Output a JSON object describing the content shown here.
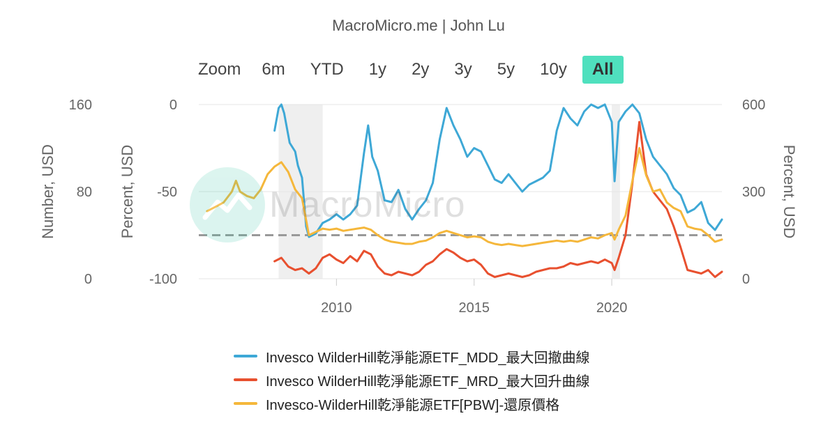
{
  "header": {
    "source": "MacroMicro.me | John Lu"
  },
  "zoom": {
    "label": "Zoom",
    "buttons": [
      {
        "label": "6m",
        "active": false
      },
      {
        "label": "YTD",
        "active": false
      },
      {
        "label": "1y",
        "active": false
      },
      {
        "label": "2y",
        "active": false
      },
      {
        "label": "3y",
        "active": false
      },
      {
        "label": "5y",
        "active": false
      },
      {
        "label": "10y",
        "active": false
      },
      {
        "label": "All",
        "active": true
      }
    ]
  },
  "watermark": {
    "text": "MacroMicro"
  },
  "colors": {
    "mdd": "#3ea8d6",
    "mrd": "#e8502f",
    "price": "#f5b73b",
    "grid": "#e6e6e6",
    "reference": "#999999",
    "recession": "#efefef"
  },
  "chart_data": {
    "type": "line",
    "x_range": [
      2005.0,
      2024.0
    ],
    "x_ticks": [
      "2010",
      "2015",
      "2020"
    ],
    "axes": {
      "left_outer": {
        "label": "Number, USD",
        "range": [
          0,
          160
        ],
        "ticks": [
          "160",
          "80",
          "0"
        ]
      },
      "left_inner": {
        "label": "Percent, USD",
        "range": [
          -100,
          0
        ],
        "ticks": [
          "0",
          "-50",
          "-100"
        ]
      },
      "right": {
        "label": "Percent, USD",
        "range": [
          0,
          600
        ],
        "ticks": [
          "600",
          "300",
          "0"
        ]
      }
    },
    "reference_line": {
      "axis": "left_inner",
      "value": -75
    },
    "recession_bands": [
      [
        2007.9,
        2009.5
      ],
      [
        2020.0,
        2020.3
      ]
    ],
    "grid": true,
    "legend_position": "bottom",
    "series": [
      {
        "name": "Invesco WilderHill乾淨能源ETF_MDD_最大回撤曲線",
        "axis": "left_inner",
        "color": "#3ea8d6",
        "points": [
          [
            2007.75,
            -15
          ],
          [
            2007.9,
            -2
          ],
          [
            2008.0,
            0
          ],
          [
            2008.1,
            -5
          ],
          [
            2008.3,
            -22
          ],
          [
            2008.5,
            -27
          ],
          [
            2008.6,
            -35
          ],
          [
            2008.75,
            -42
          ],
          [
            2008.9,
            -70
          ],
          [
            2009.0,
            -76
          ],
          [
            2009.25,
            -74
          ],
          [
            2009.5,
            -68
          ],
          [
            2009.75,
            -66
          ],
          [
            2010.0,
            -63
          ],
          [
            2010.25,
            -66
          ],
          [
            2010.5,
            -63
          ],
          [
            2010.75,
            -58
          ],
          [
            2011.0,
            -28
          ],
          [
            2011.15,
            -12
          ],
          [
            2011.3,
            -30
          ],
          [
            2011.5,
            -38
          ],
          [
            2011.75,
            -55
          ],
          [
            2012.0,
            -56
          ],
          [
            2012.25,
            -49
          ],
          [
            2012.5,
            -60
          ],
          [
            2012.75,
            -66
          ],
          [
            2013.0,
            -60
          ],
          [
            2013.25,
            -55
          ],
          [
            2013.5,
            -45
          ],
          [
            2013.75,
            -20
          ],
          [
            2014.0,
            -2
          ],
          [
            2014.25,
            -12
          ],
          [
            2014.5,
            -20
          ],
          [
            2014.75,
            -30
          ],
          [
            2015.0,
            -25
          ],
          [
            2015.25,
            -27
          ],
          [
            2015.5,
            -35
          ],
          [
            2015.75,
            -43
          ],
          [
            2016.0,
            -45
          ],
          [
            2016.25,
            -40
          ],
          [
            2016.5,
            -45
          ],
          [
            2016.75,
            -50
          ],
          [
            2017.0,
            -46
          ],
          [
            2017.25,
            -44
          ],
          [
            2017.5,
            -42
          ],
          [
            2017.75,
            -38
          ],
          [
            2018.0,
            -15
          ],
          [
            2018.25,
            -2
          ],
          [
            2018.5,
            -8
          ],
          [
            2018.75,
            -12
          ],
          [
            2019.0,
            -4
          ],
          [
            2019.25,
            0
          ],
          [
            2019.5,
            -2
          ],
          [
            2019.75,
            0
          ],
          [
            2020.0,
            -10
          ],
          [
            2020.1,
            -44
          ],
          [
            2020.25,
            -10
          ],
          [
            2020.5,
            -4
          ],
          [
            2020.75,
            0
          ],
          [
            2021.0,
            -5
          ],
          [
            2021.25,
            -20
          ],
          [
            2021.5,
            -30
          ],
          [
            2021.75,
            -35
          ],
          [
            2022.0,
            -40
          ],
          [
            2022.25,
            -48
          ],
          [
            2022.5,
            -52
          ],
          [
            2022.75,
            -62
          ],
          [
            2023.0,
            -60
          ],
          [
            2023.25,
            -56
          ],
          [
            2023.5,
            -68
          ],
          [
            2023.75,
            -72
          ],
          [
            2024.0,
            -66
          ]
        ]
      },
      {
        "name": "Invesco WilderHill乾淨能源ETF_MRD_最大回升曲線",
        "axis": "left_inner",
        "color": "#e8502f",
        "points": [
          [
            2007.75,
            -90
          ],
          [
            2008.0,
            -88
          ],
          [
            2008.25,
            -93
          ],
          [
            2008.5,
            -95
          ],
          [
            2008.75,
            -94
          ],
          [
            2009.0,
            -97
          ],
          [
            2009.25,
            -94
          ],
          [
            2009.5,
            -88
          ],
          [
            2009.75,
            -86
          ],
          [
            2010.0,
            -89
          ],
          [
            2010.25,
            -91
          ],
          [
            2010.5,
            -87
          ],
          [
            2010.75,
            -90
          ],
          [
            2011.0,
            -84
          ],
          [
            2011.25,
            -86
          ],
          [
            2011.5,
            -93
          ],
          [
            2011.75,
            -97
          ],
          [
            2012.0,
            -98
          ],
          [
            2012.25,
            -96
          ],
          [
            2012.5,
            -97
          ],
          [
            2012.75,
            -98
          ],
          [
            2013.0,
            -96
          ],
          [
            2013.25,
            -92
          ],
          [
            2013.5,
            -90
          ],
          [
            2013.75,
            -86
          ],
          [
            2014.0,
            -83
          ],
          [
            2014.25,
            -85
          ],
          [
            2014.5,
            -88
          ],
          [
            2014.75,
            -90
          ],
          [
            2015.0,
            -89
          ],
          [
            2015.25,
            -92
          ],
          [
            2015.5,
            -97
          ],
          [
            2015.75,
            -99
          ],
          [
            2016.0,
            -98
          ],
          [
            2016.25,
            -97
          ],
          [
            2016.5,
            -98
          ],
          [
            2016.75,
            -99
          ],
          [
            2017.0,
            -98
          ],
          [
            2017.25,
            -96
          ],
          [
            2017.5,
            -95
          ],
          [
            2017.75,
            -94
          ],
          [
            2018.0,
            -94
          ],
          [
            2018.25,
            -93
          ],
          [
            2018.5,
            -91
          ],
          [
            2018.75,
            -92
          ],
          [
            2019.0,
            -91
          ],
          [
            2019.25,
            -90
          ],
          [
            2019.5,
            -91
          ],
          [
            2019.75,
            -89
          ],
          [
            2020.0,
            -91
          ],
          [
            2020.1,
            -95
          ],
          [
            2020.25,
            -88
          ],
          [
            2020.5,
            -75
          ],
          [
            2020.75,
            -45
          ],
          [
            2021.0,
            -10
          ],
          [
            2021.25,
            -40
          ],
          [
            2021.5,
            -50
          ],
          [
            2021.75,
            -55
          ],
          [
            2022.0,
            -60
          ],
          [
            2022.25,
            -70
          ],
          [
            2022.5,
            -82
          ],
          [
            2022.75,
            -95
          ],
          [
            2023.0,
            -96
          ],
          [
            2023.25,
            -97
          ],
          [
            2023.5,
            -95
          ],
          [
            2023.75,
            -99
          ],
          [
            2024.0,
            -96
          ]
        ]
      },
      {
        "name": "Invesco-WilderHill乾淨能源ETF[PBW]-還原價格",
        "axis": "left_outer",
        "color": "#f5b73b",
        "points": [
          [
            2005.3,
            62
          ],
          [
            2005.6,
            66
          ],
          [
            2005.9,
            70
          ],
          [
            2006.2,
            80
          ],
          [
            2006.35,
            90
          ],
          [
            2006.5,
            80
          ],
          [
            2006.75,
            76
          ],
          [
            2007.0,
            74
          ],
          [
            2007.25,
            82
          ],
          [
            2007.5,
            96
          ],
          [
            2007.75,
            103
          ],
          [
            2008.0,
            107
          ],
          [
            2008.25,
            98
          ],
          [
            2008.5,
            82
          ],
          [
            2008.75,
            74
          ],
          [
            2009.0,
            40
          ],
          [
            2009.25,
            43
          ],
          [
            2009.5,
            46
          ],
          [
            2009.75,
            45
          ],
          [
            2010.0,
            46
          ],
          [
            2010.25,
            44
          ],
          [
            2010.5,
            45
          ],
          [
            2010.75,
            46
          ],
          [
            2011.0,
            47
          ],
          [
            2011.25,
            45
          ],
          [
            2011.5,
            40
          ],
          [
            2011.75,
            36
          ],
          [
            2012.0,
            34
          ],
          [
            2012.25,
            33
          ],
          [
            2012.5,
            32
          ],
          [
            2012.75,
            32
          ],
          [
            2013.0,
            34
          ],
          [
            2013.25,
            35
          ],
          [
            2013.5,
            38
          ],
          [
            2013.75,
            42
          ],
          [
            2014.0,
            44
          ],
          [
            2014.25,
            42
          ],
          [
            2014.5,
            40
          ],
          [
            2014.75,
            38
          ],
          [
            2015.0,
            39
          ],
          [
            2015.25,
            38
          ],
          [
            2015.5,
            34
          ],
          [
            2015.75,
            32
          ],
          [
            2016.0,
            31
          ],
          [
            2016.25,
            32
          ],
          [
            2016.5,
            31
          ],
          [
            2016.75,
            30
          ],
          [
            2017.0,
            31
          ],
          [
            2017.25,
            32
          ],
          [
            2017.5,
            33
          ],
          [
            2017.75,
            34
          ],
          [
            2018.0,
            35
          ],
          [
            2018.25,
            34
          ],
          [
            2018.5,
            35
          ],
          [
            2018.75,
            34
          ],
          [
            2019.0,
            36
          ],
          [
            2019.25,
            38
          ],
          [
            2019.5,
            37
          ],
          [
            2019.75,
            40
          ],
          [
            2020.0,
            42
          ],
          [
            2020.1,
            36
          ],
          [
            2020.25,
            45
          ],
          [
            2020.5,
            58
          ],
          [
            2020.75,
            90
          ],
          [
            2021.0,
            120
          ],
          [
            2021.25,
            95
          ],
          [
            2021.5,
            80
          ],
          [
            2021.75,
            82
          ],
          [
            2022.0,
            70
          ],
          [
            2022.25,
            65
          ],
          [
            2022.5,
            62
          ],
          [
            2022.75,
            48
          ],
          [
            2023.0,
            46
          ],
          [
            2023.25,
            45
          ],
          [
            2023.5,
            40
          ],
          [
            2023.75,
            34
          ],
          [
            2024.0,
            36
          ]
        ]
      }
    ]
  }
}
